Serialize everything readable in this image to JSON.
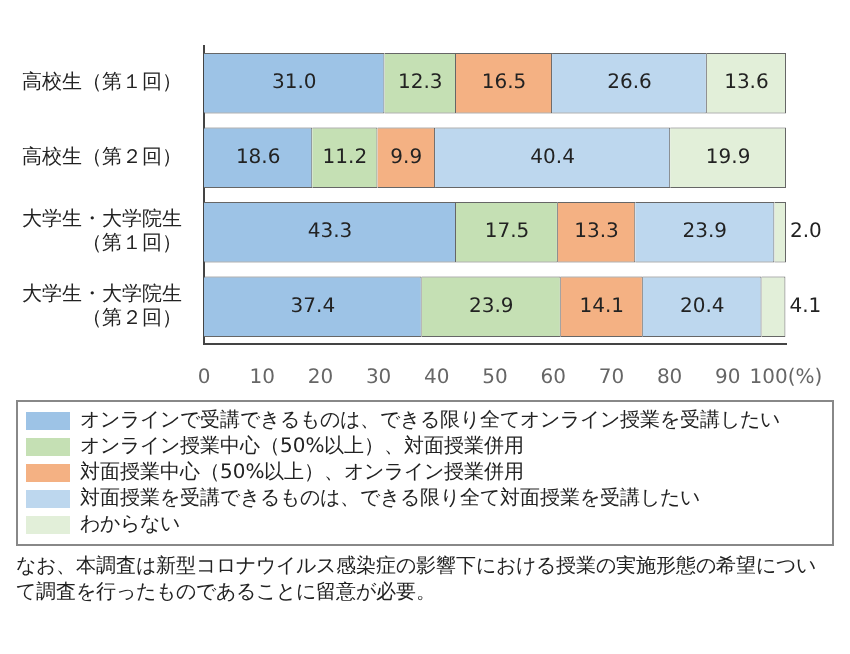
{
  "chart_data": {
    "type": "bar",
    "orientation": "horizontal",
    "stacked": true,
    "categories": [
      "高校生（第１回）",
      "高校生（第２回）",
      "大学生・大学院生（第１回）",
      "大学生・大学院生（第２回）"
    ],
    "series": [
      {
        "name": "オンラインで受講できるものは、できる限り全てオンライン授業を受講したい",
        "color": "#9dc3e6",
        "values": [
          31.0,
          18.6,
          43.3,
          37.4
        ],
        "value_labels": [
          "31.0",
          "18.6",
          "43.3",
          "37.4"
        ]
      },
      {
        "name": "オンライン授業中心（50%以上）、対面授業併用",
        "color": "#c5e0b4",
        "values": [
          12.3,
          11.2,
          17.5,
          23.9
        ],
        "value_labels": [
          "12.3",
          "11.2",
          "17.5",
          "23.9"
        ]
      },
      {
        "name": "対面授業中心（50%以上）、オンライン授業併用",
        "color": "#f4b183",
        "values": [
          16.5,
          9.9,
          13.3,
          14.1
        ],
        "value_labels": [
          "16.5",
          "9.9",
          "13.3",
          "14.1"
        ]
      },
      {
        "name": "対面授業を受講できるものは、できる限り全て対面授業を受講したい",
        "color": "#bdd7ee",
        "values": [
          26.6,
          40.4,
          23.9,
          20.4
        ],
        "value_labels": [
          "26.6",
          "40.4",
          "23.9",
          "20.4"
        ]
      },
      {
        "name": "わからない",
        "color": "#e2efd9",
        "values": [
          13.6,
          19.9,
          2.0,
          4.1
        ],
        "value_labels": [
          "13.6",
          "19.9",
          "2.0",
          "4.1"
        ]
      }
    ],
    "xlim": [
      0,
      100
    ],
    "xticks": [
      0,
      10,
      20,
      30,
      40,
      50,
      60,
      70,
      80,
      90,
      {
        "value": 100,
        "label": "100(%)"
      }
    ],
    "grid": false,
    "legend": "bottom",
    "annotations": [
      "なお、本調査は新型コロナウイルス感染症の影響下における授業の実施形態の希望について調査を行ったものであることに留意が必要。"
    ]
  }
}
